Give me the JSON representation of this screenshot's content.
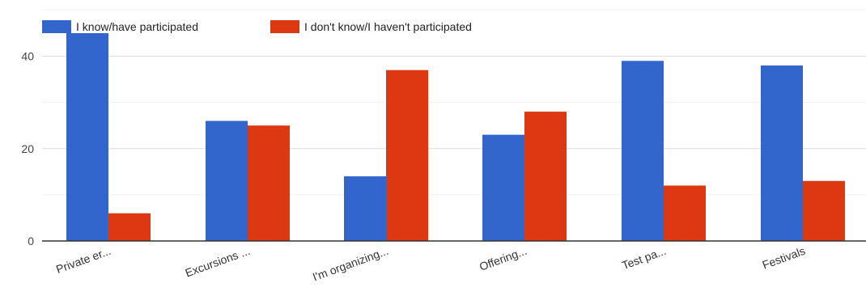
{
  "chart_data": {
    "type": "bar",
    "categories": [
      "Private er...",
      "Excursions ...",
      "I'm organizing...",
      "Offering...",
      "Test pa...",
      "Festivals"
    ],
    "series": [
      {
        "name": "I know/have participated",
        "color": "#3366cc",
        "values": [
          45,
          26,
          14,
          23,
          39,
          38
        ]
      },
      {
        "name": "I don't know/I haven't participated",
        "color": "#dc3912",
        "values": [
          6,
          25,
          37,
          28,
          12,
          13
        ]
      }
    ],
    "yticks": [
      0,
      20,
      40
    ],
    "ylim": [
      0,
      45
    ],
    "grid": true,
    "legend_position": "top-left"
  }
}
